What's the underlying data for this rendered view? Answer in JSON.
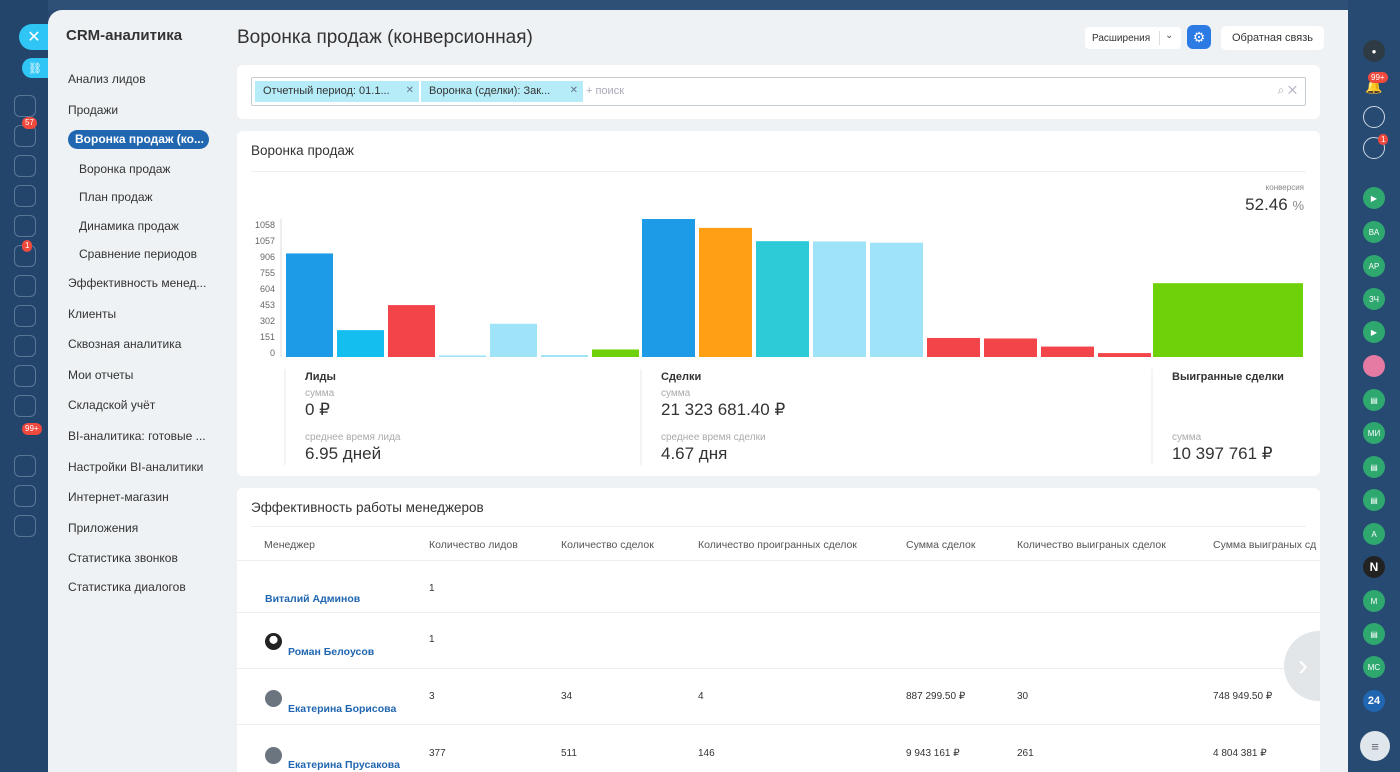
{
  "sidebar": {
    "title": "CRM-аналитика",
    "items": [
      {
        "label": "Анализ лидов"
      },
      {
        "label": "Продажи"
      }
    ],
    "active": "Воронка продаж (ко...",
    "subitems": [
      {
        "label": "Воронка продаж"
      },
      {
        "label": "План продаж"
      },
      {
        "label": "Динамика продаж"
      },
      {
        "label": "Сравнение периодов"
      }
    ],
    "items2": [
      {
        "label": "Эффективность менед..."
      },
      {
        "label": "Клиенты"
      },
      {
        "label": "Сквозная аналитика"
      },
      {
        "label": "Мои отчеты"
      },
      {
        "label": "Складской учёт"
      },
      {
        "label": "BI-аналитика: готовые ..."
      },
      {
        "label": "Настройки BI-аналитики"
      },
      {
        "label": "Интернет-магазин"
      },
      {
        "label": "Приложения"
      },
      {
        "label": "Статистика звонков"
      },
      {
        "label": "Статистика диалогов"
      }
    ]
  },
  "header": {
    "title": "Воронка продаж (конверсионная)",
    "extensions_label": "Расширения",
    "feedback_label": "Обратная связь"
  },
  "filter": {
    "chips": [
      "Отчетный период: 01.1...",
      "Воронка (сделки): Зак..."
    ],
    "placeholder": "+ поиск"
  },
  "funnel": {
    "title": "Воронка продаж",
    "conversion_label": "конверсия",
    "conversion_value": "52.46",
    "conversion_unit": "%",
    "leads": {
      "title": "Лиды",
      "sum_label": "сумма",
      "sum": "0 ₽",
      "time_label": "среднее время лида",
      "time": "6.95 дней"
    },
    "deals": {
      "title": "Сделки",
      "sum_label": "сумма",
      "sum": "21 323 681.40 ₽",
      "time_label": "среднее время сделки",
      "time": "4.67 дня"
    },
    "won": {
      "title": "Выигранные сделки",
      "sum_label": "сумма",
      "sum": "10 397 761 ₽"
    }
  },
  "chart_data": {
    "type": "bar",
    "y_ticks": [
      "1058",
      "1057",
      "906",
      "755",
      "604",
      "453",
      "302",
      "151",
      "0"
    ],
    "ylim": [
      0,
      1058
    ],
    "series": [
      {
        "values": [
          794,
          206,
          398,
          12,
          255,
          15,
          58
        ],
        "colors": [
          "#1e9be6",
          "#14bff0",
          "#f3444a",
          "#9fe3f8",
          "#9fe3f8",
          "#9fe3f8",
          "#6fd109"
        ]
      },
      {
        "values": [
          1058,
          990,
          888,
          886,
          876,
          146,
          142,
          80,
          30
        ],
        "colors": [
          "#1e9be6",
          "#ff9f14",
          "#2dcad8",
          "#9fe3f8",
          "#9fe3f8",
          "#f3444a",
          "#f3444a",
          "#f3444a",
          "#f3444a"
        ]
      },
      {
        "values": [
          566
        ],
        "colors": [
          "#6fd109"
        ]
      }
    ]
  },
  "managers": {
    "title": "Эффективность работы менеджеров",
    "columns": [
      "Менеджер",
      "Количество лидов",
      "Количество сделок",
      "Количество проигранных сделок",
      "Сумма сделок",
      "Количество выиграных сделок",
      "Сумма выиграных сд"
    ],
    "rows": [
      {
        "name": "Виталий Админов",
        "leads": "1",
        "deals": "",
        "lost": "",
        "sum": "",
        "won": "",
        "won_sum": ""
      },
      {
        "name": "Роман Белоусов",
        "leads": "1",
        "deals": "",
        "lost": "",
        "sum": "",
        "won": "",
        "won_sum": ""
      },
      {
        "name": "Екатерина Борисова",
        "leads": "3",
        "deals": "34",
        "lost": "4",
        "sum": "887 299.50 ₽",
        "won": "30",
        "won_sum": "748 949.50 ₽"
      },
      {
        "name": "Екатерина Прусакова",
        "leads": "377",
        "deals": "511",
        "lost": "146",
        "sum": "9 943 161 ₽",
        "won": "261",
        "won_sum": "4 804 381 ₽"
      }
    ]
  },
  "rightbar": {
    "badges": [
      "99+",
      "1"
    ],
    "avatars": [
      "ВА",
      "АР",
      "ЗЧ",
      "МИ",
      "А",
      "N",
      "М",
      "МС",
      "24"
    ]
  },
  "leftbar": {
    "badges": [
      "57",
      "1",
      "99+"
    ]
  }
}
